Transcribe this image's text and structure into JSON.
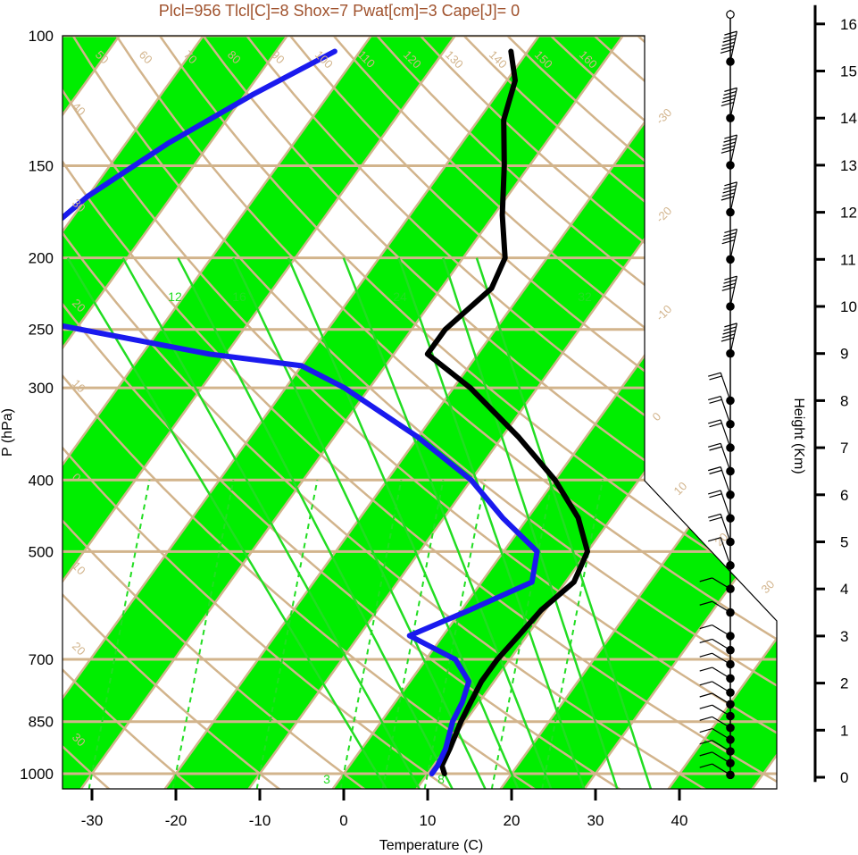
{
  "chart_data": {
    "type": "line",
    "title": "Plcl=956 Tlcl[C]=8 Shox=7 Pwat[cm]=3 Cape[J]= 0",
    "xlabel": "Temperature (C)",
    "ylabel": "P (hPa)",
    "y2label": "Height (Km)",
    "xlim": [
      -34,
      52
    ],
    "ylim_hpa": [
      1050,
      100
    ],
    "x_ticks": [
      -30,
      -20,
      -10,
      0,
      10,
      20,
      30,
      40
    ],
    "pressure_ticks": [
      100,
      150,
      200,
      250,
      300,
      400,
      500,
      700,
      850,
      1000
    ],
    "height_ticks": [
      0,
      1,
      2,
      3,
      4,
      5,
      6,
      7,
      8,
      9,
      10,
      11,
      12,
      13,
      14,
      15,
      16
    ],
    "colors": {
      "temperature": "#000000",
      "dewpoint": "#1a1aee",
      "isotherm_band": "#00ee00",
      "grid": "#d2b48c",
      "mixing_ratio": "#22dd22",
      "title": "#a0522d"
    },
    "series": [
      {
        "name": "Temperature",
        "points": [
          {
            "p": 1000,
            "t": 12
          },
          {
            "p": 975,
            "t": 11
          },
          {
            "p": 925,
            "t": 10.5
          },
          {
            "p": 850,
            "t": 9.5
          },
          {
            "p": 800,
            "t": 9
          },
          {
            "p": 750,
            "t": 8.5
          },
          {
            "p": 700,
            "t": 8.5
          },
          {
            "p": 650,
            "t": 9
          },
          {
            "p": 600,
            "t": 9.5
          },
          {
            "p": 550,
            "t": 11
          },
          {
            "p": 500,
            "t": 10
          },
          {
            "p": 450,
            "t": 6
          },
          {
            "p": 400,
            "t": 0
          },
          {
            "p": 350,
            "t": -8
          },
          {
            "p": 300,
            "t": -18
          },
          {
            "p": 270,
            "t": -26
          },
          {
            "p": 250,
            "t": -26
          },
          {
            "p": 220,
            "t": -24
          },
          {
            "p": 200,
            "t": -25
          },
          {
            "p": 175,
            "t": -29
          },
          {
            "p": 150,
            "t": -33
          },
          {
            "p": 130,
            "t": -37
          },
          {
            "p": 115,
            "t": -39
          },
          {
            "p": 105,
            "t": -42
          }
        ]
      },
      {
        "name": "Dewpoint",
        "points": [
          {
            "p": 1000,
            "t": 10.5
          },
          {
            "p": 975,
            "t": 10.5
          },
          {
            "p": 925,
            "t": 10
          },
          {
            "p": 850,
            "t": 8.5
          },
          {
            "p": 800,
            "t": 8
          },
          {
            "p": 750,
            "t": 7
          },
          {
            "p": 700,
            "t": 3.5
          },
          {
            "p": 650,
            "t": -4
          },
          {
            "p": 600,
            "t": 1
          },
          {
            "p": 550,
            "t": 6
          },
          {
            "p": 500,
            "t": 4
          },
          {
            "p": 450,
            "t": -3
          },
          {
            "p": 400,
            "t": -10
          },
          {
            "p": 350,
            "t": -20
          },
          {
            "p": 300,
            "t": -33
          },
          {
            "p": 280,
            "t": -40
          },
          {
            "p": 270,
            "t": -52
          },
          {
            "p": 245,
            "t": -74
          },
          {
            "p": 228,
            "t": -78
          },
          {
            "p": 185,
            "t": -82
          },
          {
            "p": 165,
            "t": -80
          },
          {
            "p": 140,
            "t": -75
          },
          {
            "p": 120,
            "t": -69
          },
          {
            "p": 105,
            "t": -63
          }
        ]
      }
    ],
    "dry_adiabat_labels": [
      "-30",
      "-20",
      "-10",
      "0",
      "10",
      "20",
      "30",
      "40",
      "50",
      "60",
      "70",
      "80",
      "90",
      "100",
      "110",
      "120",
      "130",
      "140",
      "150",
      "160"
    ],
    "moist_adiabat_labels": [
      "12",
      "16",
      "24",
      "32"
    ],
    "mixing_ratio_labels": [
      "3",
      "8"
    ],
    "wind_heights_km": [
      0.05,
      0.3,
      0.55,
      0.8,
      1.05,
      1.3,
      1.55,
      1.8,
      2.1,
      2.4,
      2.7,
      3.0,
      3.5,
      4.0,
      4.5,
      5.0,
      5.5,
      6.0,
      6.5,
      7.0,
      7.5,
      8.0,
      9.0,
      10.0,
      11.0,
      12.0,
      13.0,
      14.0,
      15.2,
      16.2
    ],
    "wind_speeds_kt": [
      15,
      15,
      15,
      15,
      15,
      15,
      15,
      15,
      10,
      10,
      10,
      10,
      10,
      15,
      15,
      20,
      20,
      25,
      25,
      20,
      20,
      25,
      50,
      45,
      45,
      55,
      55,
      55,
      60,
      0
    ]
  }
}
